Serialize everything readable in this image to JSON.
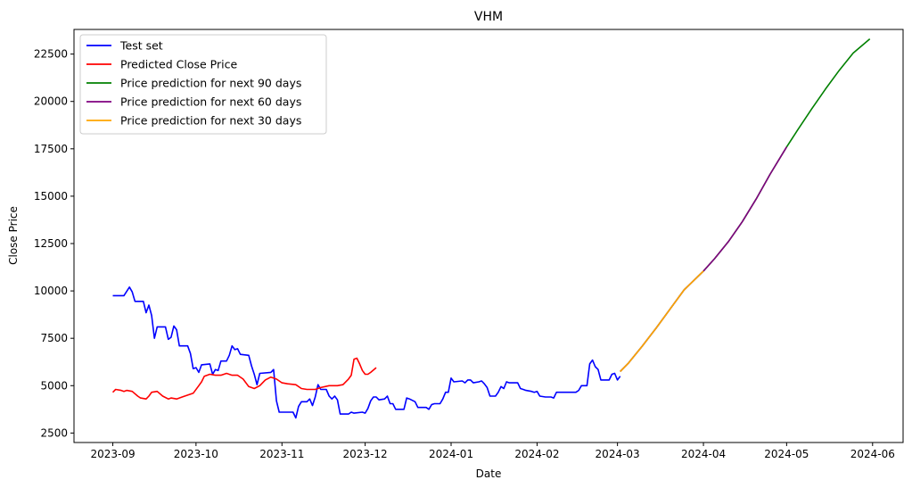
{
  "chart_data": {
    "type": "line",
    "title": "VHM",
    "xlabel": "Date",
    "ylabel": "Close Price",
    "x_ticks": [
      "2023-09",
      "2023-10",
      "2023-11",
      "2023-12",
      "2024-01",
      "2024-02",
      "2024-03",
      "2024-04",
      "2024-05",
      "2024-06"
    ],
    "y_ticks": [
      2500,
      5000,
      7500,
      10000,
      12500,
      15000,
      17500,
      20000,
      22500
    ],
    "xlim": [
      "2023-08-18",
      "2024-06-12"
    ],
    "ylim": [
      2000,
      23800
    ],
    "grid": false,
    "legend_position": "upper-left",
    "series": [
      {
        "name": "Test set",
        "color": "#0000ff",
        "points": [
          [
            "2023-09-01",
            9750
          ],
          [
            "2023-09-05",
            9750
          ],
          [
            "2023-09-07",
            10200
          ],
          [
            "2023-09-08",
            9950
          ],
          [
            "2023-09-09",
            9450
          ],
          [
            "2023-09-12",
            9450
          ],
          [
            "2023-09-13",
            8850
          ],
          [
            "2023-09-14",
            9250
          ],
          [
            "2023-09-15",
            8700
          ],
          [
            "2023-09-16",
            7500
          ],
          [
            "2023-09-17",
            8100
          ],
          [
            "2023-09-20",
            8100
          ],
          [
            "2023-09-21",
            7450
          ],
          [
            "2023-09-22",
            7550
          ],
          [
            "2023-09-23",
            8150
          ],
          [
            "2023-09-24",
            7950
          ],
          [
            "2023-09-25",
            7100
          ],
          [
            "2023-09-28",
            7100
          ],
          [
            "2023-09-29",
            6700
          ],
          [
            "2023-09-30",
            5900
          ],
          [
            "2023-10-01",
            5950
          ],
          [
            "2023-10-02",
            5700
          ],
          [
            "2023-10-03",
            6100
          ],
          [
            "2023-10-06",
            6150
          ],
          [
            "2023-10-07",
            5600
          ],
          [
            "2023-10-08",
            5850
          ],
          [
            "2023-10-09",
            5800
          ],
          [
            "2023-10-10",
            6300
          ],
          [
            "2023-10-12",
            6300
          ],
          [
            "2023-10-13",
            6600
          ],
          [
            "2023-10-14",
            7100
          ],
          [
            "2023-10-15",
            6900
          ],
          [
            "2023-10-16",
            6950
          ],
          [
            "2023-10-17",
            6650
          ],
          [
            "2023-10-20",
            6600
          ],
          [
            "2023-10-21",
            6050
          ],
          [
            "2023-10-22",
            5600
          ],
          [
            "2023-10-23",
            5050
          ],
          [
            "2023-10-24",
            5650
          ],
          [
            "2023-10-28",
            5700
          ],
          [
            "2023-10-29",
            5850
          ],
          [
            "2023-10-30",
            4200
          ],
          [
            "2023-10-31",
            3600
          ],
          [
            "2023-11-04",
            3600
          ],
          [
            "2023-11-05",
            3600
          ],
          [
            "2023-11-06",
            3300
          ],
          [
            "2023-11-07",
            3900
          ],
          [
            "2023-11-08",
            4150
          ],
          [
            "2023-11-10",
            4150
          ],
          [
            "2023-11-11",
            4300
          ],
          [
            "2023-11-12",
            3950
          ],
          [
            "2023-11-13",
            4400
          ],
          [
            "2023-11-14",
            5050
          ],
          [
            "2023-11-15",
            4800
          ],
          [
            "2023-11-17",
            4800
          ],
          [
            "2023-11-18",
            4450
          ],
          [
            "2023-11-19",
            4300
          ],
          [
            "2023-11-20",
            4450
          ],
          [
            "2023-11-21",
            4250
          ],
          [
            "2023-11-22",
            3500
          ],
          [
            "2023-11-25",
            3500
          ],
          [
            "2023-11-26",
            3600
          ],
          [
            "2023-11-27",
            3550
          ],
          [
            "2023-11-30",
            3600
          ],
          [
            "2023-12-01",
            3550
          ],
          [
            "2023-12-02",
            3800
          ],
          [
            "2023-12-03",
            4200
          ],
          [
            "2023-12-04",
            4400
          ],
          [
            "2023-12-05",
            4400
          ],
          [
            "2023-12-06",
            4250
          ],
          [
            "2023-12-08",
            4300
          ],
          [
            "2023-12-09",
            4450
          ],
          [
            "2023-12-10",
            4050
          ],
          [
            "2023-12-11",
            4050
          ],
          [
            "2023-12-12",
            3750
          ],
          [
            "2023-12-15",
            3750
          ],
          [
            "2023-12-16",
            4350
          ],
          [
            "2023-12-17",
            4300
          ],
          [
            "2023-12-19",
            4150
          ],
          [
            "2023-12-20",
            3850
          ],
          [
            "2023-12-23",
            3850
          ],
          [
            "2023-12-24",
            3750
          ],
          [
            "2023-12-25",
            4000
          ],
          [
            "2023-12-26",
            4050
          ],
          [
            "2023-12-28",
            4050
          ],
          [
            "2023-12-29",
            4300
          ],
          [
            "2023-12-30",
            4650
          ],
          [
            "2023-12-31",
            4650
          ],
          [
            "2024-01-01",
            5400
          ],
          [
            "2024-01-02",
            5200
          ],
          [
            "2024-01-05",
            5250
          ],
          [
            "2024-01-06",
            5150
          ],
          [
            "2024-01-07",
            5300
          ],
          [
            "2024-01-08",
            5300
          ],
          [
            "2024-01-09",
            5150
          ],
          [
            "2024-01-11",
            5200
          ],
          [
            "2024-01-12",
            5250
          ],
          [
            "2024-01-13",
            5100
          ],
          [
            "2024-01-14",
            4900
          ],
          [
            "2024-01-15",
            4450
          ],
          [
            "2024-01-17",
            4450
          ],
          [
            "2024-01-18",
            4650
          ],
          [
            "2024-01-19",
            4950
          ],
          [
            "2024-01-20",
            4850
          ],
          [
            "2024-01-21",
            5200
          ],
          [
            "2024-01-22",
            5150
          ],
          [
            "2024-01-25",
            5150
          ],
          [
            "2024-01-26",
            4850
          ],
          [
            "2024-01-27",
            4800
          ],
          [
            "2024-01-28",
            4750
          ],
          [
            "2024-01-30",
            4700
          ],
          [
            "2024-01-31",
            4650
          ],
          [
            "2024-02-01",
            4700
          ],
          [
            "2024-02-02",
            4450
          ],
          [
            "2024-02-04",
            4400
          ],
          [
            "2024-02-06",
            4400
          ],
          [
            "2024-02-07",
            4350
          ],
          [
            "2024-02-08",
            4650
          ],
          [
            "2024-02-10",
            4650
          ],
          [
            "2024-02-15",
            4650
          ],
          [
            "2024-02-16",
            4750
          ],
          [
            "2024-02-17",
            5000
          ],
          [
            "2024-02-19",
            5000
          ],
          [
            "2024-02-20",
            6150
          ],
          [
            "2024-02-21",
            6350
          ],
          [
            "2024-02-22",
            6000
          ],
          [
            "2024-02-23",
            5850
          ],
          [
            "2024-02-24",
            5300
          ],
          [
            "2024-02-27",
            5300
          ],
          [
            "2024-02-28",
            5600
          ],
          [
            "2024-02-29",
            5650
          ],
          [
            "2024-03-01",
            5300
          ],
          [
            "2024-03-02",
            5500
          ]
        ]
      },
      {
        "name": "Predicted Close Price",
        "color": "#ff0000",
        "points": [
          [
            "2023-09-01",
            4650
          ],
          [
            "2023-09-02",
            4800
          ],
          [
            "2023-09-04",
            4750
          ],
          [
            "2023-09-05",
            4700
          ],
          [
            "2023-09-06",
            4750
          ],
          [
            "2023-09-08",
            4700
          ],
          [
            "2023-09-10",
            4450
          ],
          [
            "2023-09-11",
            4350
          ],
          [
            "2023-09-13",
            4300
          ],
          [
            "2023-09-14",
            4450
          ],
          [
            "2023-09-15",
            4650
          ],
          [
            "2023-09-17",
            4700
          ],
          [
            "2023-09-19",
            4450
          ],
          [
            "2023-09-21",
            4300
          ],
          [
            "2023-09-22",
            4350
          ],
          [
            "2023-09-24",
            4300
          ],
          [
            "2023-09-26",
            4400
          ],
          [
            "2023-09-28",
            4500
          ],
          [
            "2023-09-30",
            4600
          ],
          [
            "2023-10-02",
            5000
          ],
          [
            "2023-10-03",
            5200
          ],
          [
            "2023-10-04",
            5500
          ],
          [
            "2023-10-06",
            5600
          ],
          [
            "2023-10-08",
            5550
          ],
          [
            "2023-10-10",
            5550
          ],
          [
            "2023-10-12",
            5650
          ],
          [
            "2023-10-14",
            5550
          ],
          [
            "2023-10-16",
            5550
          ],
          [
            "2023-10-18",
            5350
          ],
          [
            "2023-10-20",
            4950
          ],
          [
            "2023-10-22",
            4850
          ],
          [
            "2023-10-24",
            5000
          ],
          [
            "2023-10-26",
            5300
          ],
          [
            "2023-10-28",
            5450
          ],
          [
            "2023-10-30",
            5350
          ],
          [
            "2023-11-01",
            5150
          ],
          [
            "2023-11-03",
            5100
          ],
          [
            "2023-11-06",
            5050
          ],
          [
            "2023-11-08",
            4850
          ],
          [
            "2023-11-10",
            4800
          ],
          [
            "2023-11-13",
            4800
          ],
          [
            "2023-11-15",
            4900
          ],
          [
            "2023-11-18",
            5000
          ],
          [
            "2023-11-21",
            5000
          ],
          [
            "2023-11-23",
            5050
          ],
          [
            "2023-11-25",
            5350
          ],
          [
            "2023-11-26",
            5550
          ],
          [
            "2023-11-27",
            6400
          ],
          [
            "2023-11-28",
            6450
          ],
          [
            "2023-11-29",
            6150
          ],
          [
            "2023-11-30",
            5800
          ],
          [
            "2023-12-01",
            5600
          ],
          [
            "2023-12-02",
            5600
          ],
          [
            "2023-12-03",
            5700
          ],
          [
            "2023-12-05",
            5950
          ]
        ]
      },
      {
        "name": "Price prediction for next 90 days",
        "color": "#008000",
        "points": [
          [
            "2024-03-02",
            5750
          ],
          [
            "2024-03-05",
            6200
          ],
          [
            "2024-03-10",
            7100
          ],
          [
            "2024-03-15",
            8050
          ],
          [
            "2024-03-20",
            9050
          ],
          [
            "2024-03-25",
            10050
          ],
          [
            "2024-04-01",
            11050
          ],
          [
            "2024-04-05",
            11700
          ],
          [
            "2024-04-10",
            12600
          ],
          [
            "2024-04-15",
            13650
          ],
          [
            "2024-04-20",
            14850
          ],
          [
            "2024-04-25",
            16150
          ],
          [
            "2024-05-01",
            17600
          ],
          [
            "2024-05-05",
            18500
          ],
          [
            "2024-05-10",
            19600
          ],
          [
            "2024-05-15",
            20650
          ],
          [
            "2024-05-20",
            21650
          ],
          [
            "2024-05-25",
            22550
          ],
          [
            "2024-05-31",
            23300
          ]
        ]
      },
      {
        "name": "Price prediction for next 60 days",
        "color": "#800080",
        "points": [
          [
            "2024-03-02",
            5750
          ],
          [
            "2024-03-05",
            6200
          ],
          [
            "2024-03-10",
            7100
          ],
          [
            "2024-03-15",
            8050
          ],
          [
            "2024-03-20",
            9050
          ],
          [
            "2024-03-25",
            10050
          ],
          [
            "2024-04-01",
            11050
          ],
          [
            "2024-04-05",
            11700
          ],
          [
            "2024-04-10",
            12600
          ],
          [
            "2024-04-15",
            13650
          ],
          [
            "2024-04-20",
            14850
          ],
          [
            "2024-04-25",
            16150
          ],
          [
            "2024-05-01",
            17600
          ]
        ]
      },
      {
        "name": "Price prediction for next 30 days",
        "color": "#ffa500",
        "points": [
          [
            "2024-03-02",
            5750
          ],
          [
            "2024-03-05",
            6200
          ],
          [
            "2024-03-10",
            7100
          ],
          [
            "2024-03-15",
            8050
          ],
          [
            "2024-03-20",
            9050
          ],
          [
            "2024-03-25",
            10050
          ],
          [
            "2024-04-01",
            11050
          ]
        ]
      }
    ]
  }
}
